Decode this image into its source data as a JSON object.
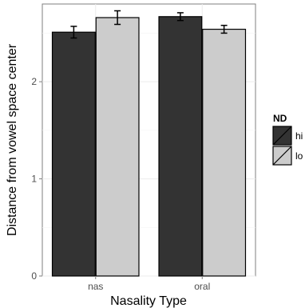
{
  "chart_data": {
    "type": "bar",
    "title": "",
    "xlabel": "Nasality Type",
    "ylabel": "Distance from vowel space center",
    "categories": [
      "nas",
      "oral"
    ],
    "ylim": [
      0,
      2.8
    ],
    "yticks": [
      0,
      1,
      2
    ],
    "grid": true,
    "legend": {
      "title": "ND",
      "placement": "right"
    },
    "series": [
      {
        "name": "hi",
        "color": "#333333",
        "values": [
          2.51,
          2.67
        ],
        "err_low": [
          2.45,
          2.63
        ],
        "err_high": [
          2.57,
          2.71
        ]
      },
      {
        "name": "lo",
        "color": "#cccccc",
        "values": [
          2.66,
          2.54
        ],
        "err_low": [
          2.59,
          2.5
        ],
        "err_high": [
          2.73,
          2.58
        ]
      }
    ]
  },
  "colors": {
    "panel": "#ffffff",
    "panel_border": "#7f7f7f",
    "grid_major": "#ebebeb",
    "grid_minor": "#f5f5f5",
    "bar_outline": "#000000"
  }
}
